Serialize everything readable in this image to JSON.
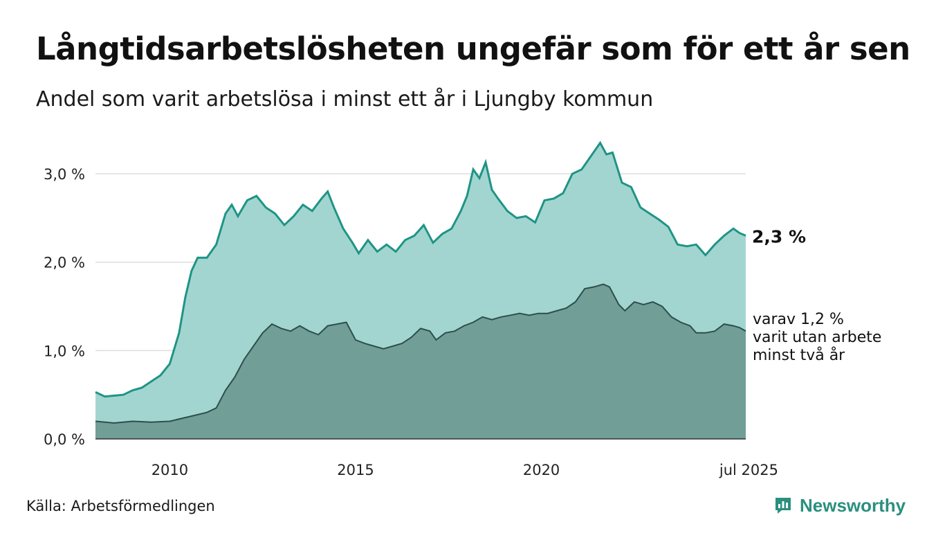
{
  "title": "Långtidsarbetslösheten ungefär som för ett år sen",
  "subtitle": "Andel som varit arbetslösa i minst ett år i Ljungby kommun",
  "source": "Källa: Arbetsförmedlingen",
  "logo_text": "Newsworthy",
  "colors": {
    "upper_fill": "#a3d5d0",
    "upper_line": "#1e9485",
    "lower_fill": "#719e97",
    "lower_line": "#2c4f4a",
    "gridline": "#dddddd",
    "brand": "#2b8f7f"
  },
  "chart_data": {
    "type": "area",
    "x_range": [
      "2008-01",
      "2025-07"
    ],
    "ylim": [
      0,
      3.4
    ],
    "y_ticks": [
      {
        "value": 0,
        "label": "0,0 %"
      },
      {
        "value": 1,
        "label": "1,0 %"
      },
      {
        "value": 2,
        "label": "2,0 %"
      },
      {
        "value": 3,
        "label": "3,0 %"
      }
    ],
    "x_ticks": [
      {
        "value": "2010-01",
        "label": "2010"
      },
      {
        "value": "2015-01",
        "label": "2015"
      },
      {
        "value": "2020-01",
        "label": "2020"
      },
      {
        "value": "2025-07",
        "label": "jul 2025"
      }
    ],
    "grid": true,
    "series": [
      {
        "key": "minst_ett_ar",
        "end_label": "2,3 %",
        "points": [
          [
            "2008-01",
            0.53
          ],
          [
            "2008-04",
            0.48
          ],
          [
            "2008-07",
            0.49
          ],
          [
            "2008-10",
            0.5
          ],
          [
            "2009-01",
            0.55
          ],
          [
            "2009-04",
            0.58
          ],
          [
            "2009-07",
            0.65
          ],
          [
            "2009-10",
            0.72
          ],
          [
            "2010-01",
            0.85
          ],
          [
            "2010-04",
            1.2
          ],
          [
            "2010-06",
            1.6
          ],
          [
            "2010-08",
            1.9
          ],
          [
            "2010-10",
            2.05
          ],
          [
            "2011-01",
            2.05
          ],
          [
            "2011-04",
            2.2
          ],
          [
            "2011-07",
            2.55
          ],
          [
            "2011-09",
            2.65
          ],
          [
            "2011-11",
            2.52
          ],
          [
            "2012-02",
            2.7
          ],
          [
            "2012-05",
            2.75
          ],
          [
            "2012-08",
            2.62
          ],
          [
            "2012-11",
            2.55
          ],
          [
            "2013-02",
            2.42
          ],
          [
            "2013-05",
            2.52
          ],
          [
            "2013-08",
            2.65
          ],
          [
            "2013-11",
            2.58
          ],
          [
            "2014-02",
            2.72
          ],
          [
            "2014-04",
            2.8
          ],
          [
            "2014-06",
            2.62
          ],
          [
            "2014-09",
            2.38
          ],
          [
            "2014-12",
            2.22
          ],
          [
            "2015-02",
            2.1
          ],
          [
            "2015-05",
            2.25
          ],
          [
            "2015-08",
            2.12
          ],
          [
            "2015-11",
            2.2
          ],
          [
            "2016-02",
            2.12
          ],
          [
            "2016-05",
            2.25
          ],
          [
            "2016-08",
            2.3
          ],
          [
            "2016-11",
            2.42
          ],
          [
            "2017-02",
            2.22
          ],
          [
            "2017-05",
            2.32
          ],
          [
            "2017-08",
            2.38
          ],
          [
            "2017-11",
            2.58
          ],
          [
            "2018-01",
            2.75
          ],
          [
            "2018-03",
            3.05
          ],
          [
            "2018-05",
            2.95
          ],
          [
            "2018-07",
            3.13
          ],
          [
            "2018-09",
            2.82
          ],
          [
            "2018-11",
            2.72
          ],
          [
            "2019-02",
            2.58
          ],
          [
            "2019-05",
            2.5
          ],
          [
            "2019-08",
            2.52
          ],
          [
            "2019-11",
            2.45
          ],
          [
            "2020-02",
            2.7
          ],
          [
            "2020-05",
            2.72
          ],
          [
            "2020-08",
            2.78
          ],
          [
            "2020-11",
            3.0
          ],
          [
            "2021-02",
            3.05
          ],
          [
            "2021-05",
            3.2
          ],
          [
            "2021-08",
            3.35
          ],
          [
            "2021-10",
            3.22
          ],
          [
            "2021-12",
            3.24
          ],
          [
            "2022-03",
            2.9
          ],
          [
            "2022-06",
            2.85
          ],
          [
            "2022-09",
            2.62
          ],
          [
            "2022-12",
            2.55
          ],
          [
            "2023-03",
            2.48
          ],
          [
            "2023-06",
            2.4
          ],
          [
            "2023-09",
            2.2
          ],
          [
            "2023-12",
            2.18
          ],
          [
            "2024-03",
            2.2
          ],
          [
            "2024-06",
            2.08
          ],
          [
            "2024-09",
            2.2
          ],
          [
            "2024-12",
            2.3
          ],
          [
            "2025-03",
            2.38
          ],
          [
            "2025-05",
            2.33
          ],
          [
            "2025-07",
            2.3
          ]
        ]
      },
      {
        "key": "minst_tva_ar",
        "end_label_lines": [
          "varav 1,2 %",
          "varit utan arbete",
          "minst två år"
        ],
        "points": [
          [
            "2008-01",
            0.2
          ],
          [
            "2008-07",
            0.18
          ],
          [
            "2009-01",
            0.2
          ],
          [
            "2009-07",
            0.19
          ],
          [
            "2010-01",
            0.2
          ],
          [
            "2010-07",
            0.25
          ],
          [
            "2011-01",
            0.3
          ],
          [
            "2011-04",
            0.35
          ],
          [
            "2011-07",
            0.55
          ],
          [
            "2011-10",
            0.7
          ],
          [
            "2012-01",
            0.9
          ],
          [
            "2012-04",
            1.05
          ],
          [
            "2012-07",
            1.2
          ],
          [
            "2012-10",
            1.3
          ],
          [
            "2013-01",
            1.25
          ],
          [
            "2013-04",
            1.22
          ],
          [
            "2013-07",
            1.28
          ],
          [
            "2013-10",
            1.22
          ],
          [
            "2014-01",
            1.18
          ],
          [
            "2014-04",
            1.28
          ],
          [
            "2014-07",
            1.3
          ],
          [
            "2014-10",
            1.32
          ],
          [
            "2015-01",
            1.12
          ],
          [
            "2015-04",
            1.08
          ],
          [
            "2015-07",
            1.05
          ],
          [
            "2015-10",
            1.02
          ],
          [
            "2016-01",
            1.05
          ],
          [
            "2016-04",
            1.08
          ],
          [
            "2016-07",
            1.15
          ],
          [
            "2016-10",
            1.25
          ],
          [
            "2017-01",
            1.22
          ],
          [
            "2017-03",
            1.12
          ],
          [
            "2017-06",
            1.2
          ],
          [
            "2017-09",
            1.22
          ],
          [
            "2017-12",
            1.28
          ],
          [
            "2018-03",
            1.32
          ],
          [
            "2018-06",
            1.38
          ],
          [
            "2018-09",
            1.35
          ],
          [
            "2018-12",
            1.38
          ],
          [
            "2019-03",
            1.4
          ],
          [
            "2019-06",
            1.42
          ],
          [
            "2019-09",
            1.4
          ],
          [
            "2019-12",
            1.42
          ],
          [
            "2020-03",
            1.42
          ],
          [
            "2020-06",
            1.45
          ],
          [
            "2020-09",
            1.48
          ],
          [
            "2020-12",
            1.55
          ],
          [
            "2021-03",
            1.7
          ],
          [
            "2021-06",
            1.72
          ],
          [
            "2021-09",
            1.75
          ],
          [
            "2021-11",
            1.72
          ],
          [
            "2022-02",
            1.52
          ],
          [
            "2022-04",
            1.45
          ],
          [
            "2022-07",
            1.55
          ],
          [
            "2022-10",
            1.52
          ],
          [
            "2023-01",
            1.55
          ],
          [
            "2023-04",
            1.5
          ],
          [
            "2023-07",
            1.38
          ],
          [
            "2023-10",
            1.32
          ],
          [
            "2024-01",
            1.28
          ],
          [
            "2024-03",
            1.2
          ],
          [
            "2024-06",
            1.2
          ],
          [
            "2024-09",
            1.22
          ],
          [
            "2024-12",
            1.3
          ],
          [
            "2025-03",
            1.28
          ],
          [
            "2025-05",
            1.26
          ],
          [
            "2025-07",
            1.22
          ]
        ]
      }
    ]
  }
}
